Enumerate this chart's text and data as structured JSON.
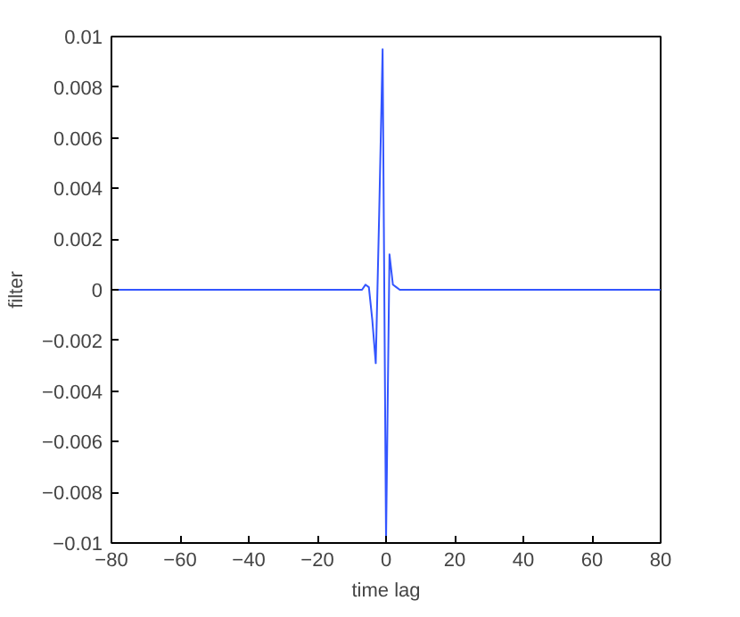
{
  "chart_data": {
    "type": "line",
    "xlabel": "time lag",
    "ylabel": "filter",
    "x": [
      -80,
      -10,
      -8,
      -7,
      -6,
      -5,
      -4,
      -3,
      -2,
      -1,
      0,
      1,
      2,
      3,
      4,
      6,
      10,
      80
    ],
    "series": [
      {
        "color": "#3355ff",
        "values": [
          0,
          0,
          0,
          0,
          0.0002,
          0.0001,
          -0.0012,
          -0.0029,
          0.003,
          0.0095,
          -0.0099,
          0.0014,
          0.0002,
          0.0001,
          0,
          0,
          0,
          0
        ]
      }
    ],
    "xlim": [
      -80,
      80
    ],
    "ylim": [
      -0.01,
      0.01
    ],
    "xticks": [
      -80,
      -60,
      -40,
      -20,
      0,
      20,
      40,
      60,
      80
    ],
    "yticks": [
      -0.01,
      -0.008,
      -0.006,
      -0.004,
      -0.002,
      0,
      0.002,
      0.004,
      0.006,
      0.008,
      0.01
    ],
    "grid": false
  }
}
